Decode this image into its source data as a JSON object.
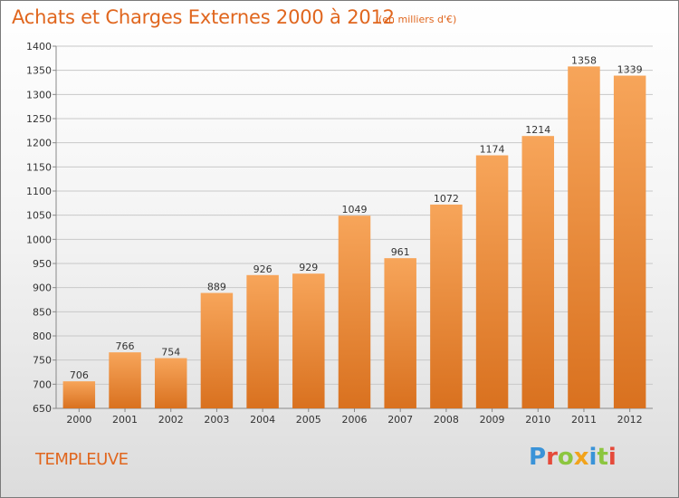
{
  "chart_data": {
    "type": "bar",
    "title": "Achats et Charges Externes 2000 à 2012",
    "subtitle": "(en milliers d'€)",
    "categories": [
      "2000",
      "2001",
      "2002",
      "2003",
      "2004",
      "2005",
      "2006",
      "2007",
      "2008",
      "2009",
      "2010",
      "2011",
      "2012"
    ],
    "values": [
      706,
      766,
      754,
      889,
      926,
      929,
      1049,
      961,
      1072,
      1174,
      1214,
      1358,
      1339
    ],
    "ylim": [
      650,
      1400
    ],
    "yticks": [
      650,
      700,
      750,
      800,
      850,
      900,
      950,
      1000,
      1050,
      1100,
      1150,
      1200,
      1250,
      1300,
      1350,
      1400
    ],
    "grid": true,
    "bar_color_top": "#f7a55a",
    "bar_color_bottom": "#d9711f"
  },
  "footer": {
    "city": "TEMPLEUVE",
    "logo_letters": [
      {
        "ch": "P",
        "color": "#3a93d8"
      },
      {
        "ch": "r",
        "color": "#e54a3a"
      },
      {
        "ch": "o",
        "color": "#8cc63f"
      },
      {
        "ch": "x",
        "color": "#f2a31b"
      },
      {
        "ch": "i",
        "color": "#3a93d8"
      },
      {
        "ch": "t",
        "color": "#8cc63f"
      },
      {
        "ch": "i",
        "color": "#e54a3a"
      }
    ]
  },
  "colors": {
    "title": "#e0661e",
    "grid": "#c8c8c8",
    "axis_text": "#333333"
  }
}
